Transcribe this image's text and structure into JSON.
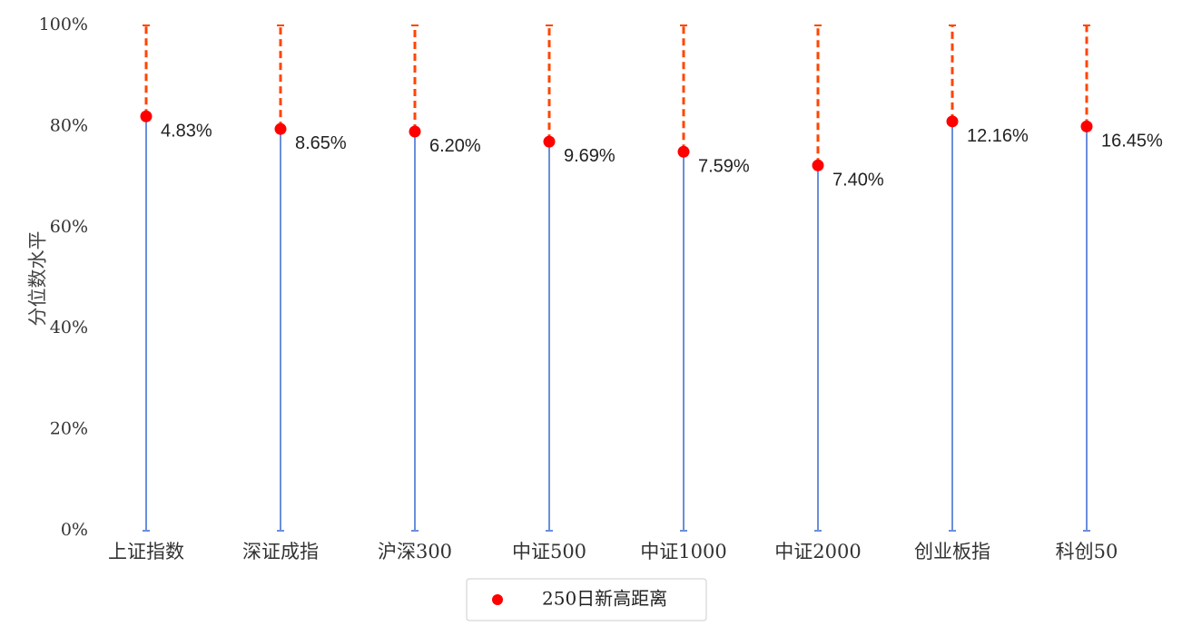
{
  "chart_data": {
    "type": "lollipop",
    "categories": [
      "上证指数",
      "深证成指",
      "沪深300",
      "中证500",
      "中证1000",
      "中证2000",
      "创业板指",
      "科创50"
    ],
    "series": [
      {
        "name": "250日新高距离",
        "percentile": [
          82,
          79.5,
          79,
          77,
          75,
          72.3,
          81,
          80
        ],
        "labels": [
          "4.83%",
          "8.65%",
          "6.20%",
          "9.69%",
          "7.59%",
          "7.40%",
          "12.16%",
          "16.45%"
        ]
      }
    ],
    "ylabel": "分位数水平",
    "ylim": [
      0,
      100
    ],
    "yticks": [
      0,
      20,
      40,
      60,
      80,
      100
    ],
    "ytick_labels": [
      "0%",
      "20%",
      "40%",
      "60%",
      "80%",
      "100%"
    ],
    "legend": {
      "label": "250日新高距离",
      "position": "bottom-center"
    },
    "colors": {
      "stem": "#6a8fdc",
      "gap": "#ff4500",
      "point": "#ff0000"
    },
    "grid": false
  }
}
